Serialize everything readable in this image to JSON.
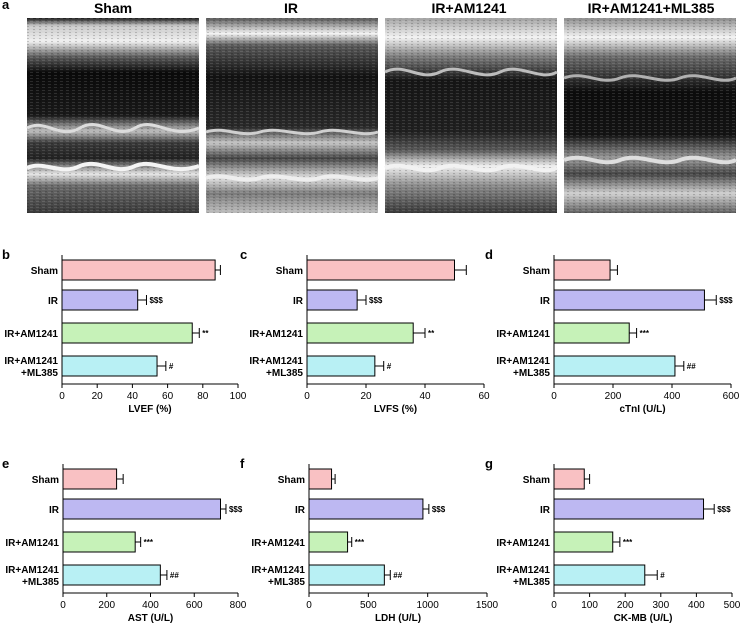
{
  "panel_a": {
    "letter": "a",
    "titles": [
      "Sham",
      "IR",
      "IR+AM1241",
      "IR+AM1241+ML385"
    ]
  },
  "colors": {
    "Sham": "#f9c1c3",
    "IR": "#bdb8f2",
    "IR+AM1241": "#c6f2b8",
    "IR+AM1241+ML385": "#b8f0f4"
  },
  "chart_data": [
    {
      "type": "bar",
      "orientation": "horizontal",
      "panel": "b",
      "categories": [
        "Sham",
        "IR",
        "IR+AM1241",
        "IR+AM1241\n+ML385"
      ],
      "values": [
        87,
        43,
        74,
        54
      ],
      "errors": [
        3,
        5,
        4,
        5
      ],
      "significance": [
        "",
        "$$$",
        "**",
        "#"
      ],
      "xlabel": "LVEF (%)",
      "xlim": [
        0,
        100
      ],
      "ticks": [
        0,
        20,
        40,
        60,
        80,
        100
      ]
    },
    {
      "type": "bar",
      "orientation": "horizontal",
      "panel": "c",
      "categories": [
        "Sham",
        "IR",
        "IR+AM1241",
        "IR+AM1241\n+ML385"
      ],
      "values": [
        50,
        17,
        36,
        23
      ],
      "errors": [
        4,
        3,
        4,
        3
      ],
      "significance": [
        "",
        "$$$",
        "**",
        "#"
      ],
      "xlabel": "LVFS (%)",
      "xlim": [
        0,
        60
      ],
      "ticks": [
        0,
        20,
        40,
        60
      ]
    },
    {
      "type": "bar",
      "orientation": "horizontal",
      "panel": "d",
      "categories": [
        "Sham",
        "IR",
        "IR+AM1241",
        "IR+AM1241\n+ML385"
      ],
      "values": [
        190,
        510,
        255,
        410
      ],
      "errors": [
        25,
        40,
        25,
        30
      ],
      "significance": [
        "",
        "$$$",
        "***",
        "##"
      ],
      "xlabel": "cTnI (U/L)",
      "xlim": [
        0,
        600
      ],
      "ticks": [
        0,
        200,
        400,
        600
      ]
    },
    {
      "type": "bar",
      "orientation": "horizontal",
      "panel": "e",
      "categories": [
        "Sham",
        "IR",
        "IR+AM1241",
        "IR+AM1241\n+ML385"
      ],
      "values": [
        245,
        720,
        330,
        445
      ],
      "errors": [
        30,
        25,
        25,
        30
      ],
      "significance": [
        "",
        "$$$",
        "***",
        "##"
      ],
      "xlabel": "AST (U/L)",
      "xlim": [
        0,
        800
      ],
      "ticks": [
        0,
        200,
        400,
        600,
        800
      ]
    },
    {
      "type": "bar",
      "orientation": "horizontal",
      "panel": "f",
      "categories": [
        "Sham",
        "IR",
        "IR+AM1241",
        "IR+AM1241\n+ML385"
      ],
      "values": [
        190,
        960,
        325,
        635
      ],
      "errors": [
        30,
        50,
        35,
        50
      ],
      "significance": [
        "",
        "$$$",
        "***",
        "##"
      ],
      "xlabel": "LDH (U/L)",
      "xlim": [
        0,
        1500
      ],
      "ticks": [
        0,
        500,
        1000,
        1500
      ]
    },
    {
      "type": "bar",
      "orientation": "horizontal",
      "panel": "g",
      "categories": [
        "Sham",
        "IR",
        "IR+AM1241",
        "IR+AM1241\n+ML385"
      ],
      "values": [
        85,
        420,
        165,
        255
      ],
      "errors": [
        15,
        30,
        20,
        35
      ],
      "significance": [
        "",
        "$$$",
        "***",
        "#"
      ],
      "xlabel": "CK-MB (U/L)",
      "xlim": [
        0,
        500
      ],
      "ticks": [
        0,
        100,
        200,
        300,
        400,
        500
      ]
    }
  ]
}
